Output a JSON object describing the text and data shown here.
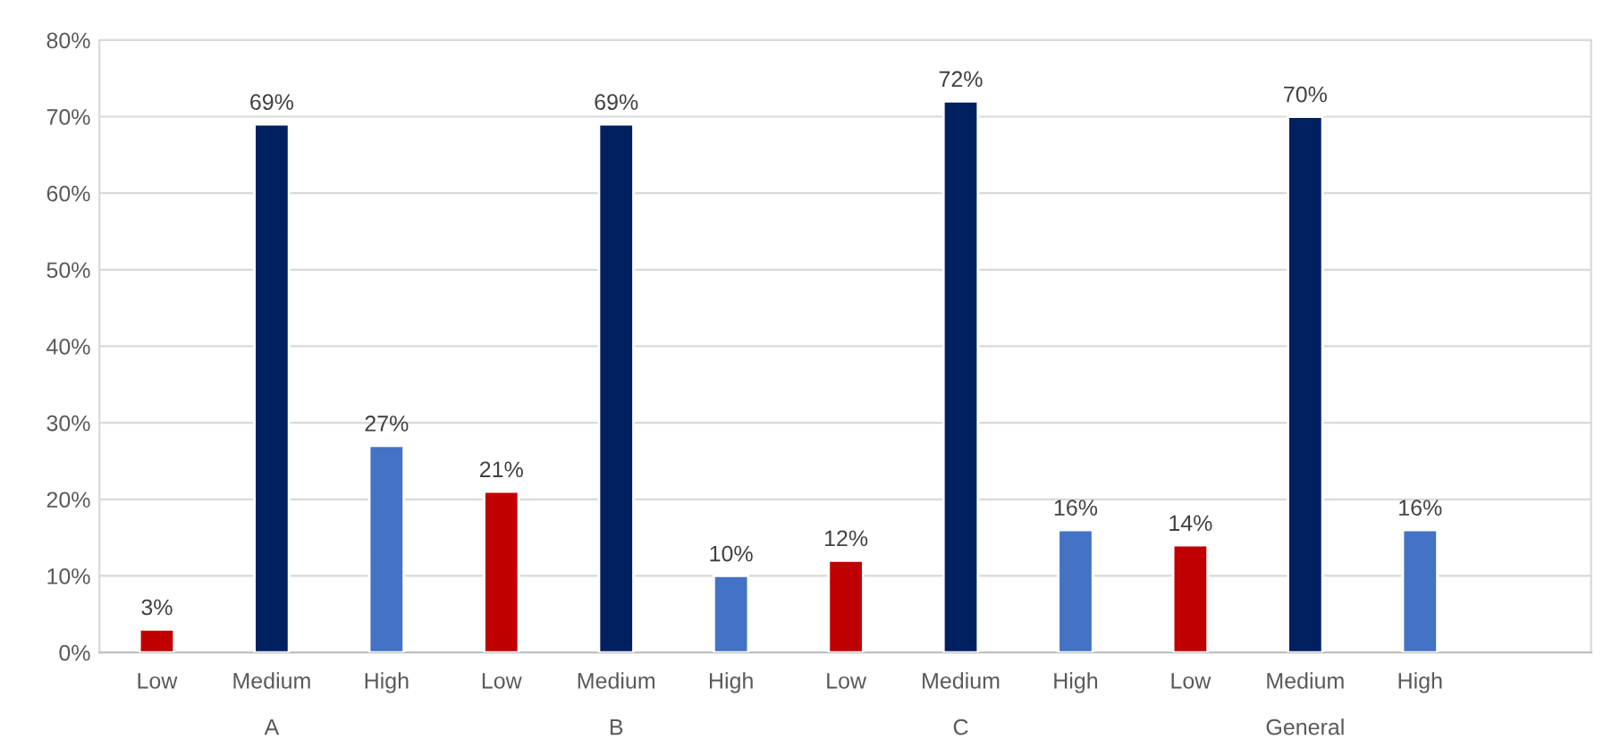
{
  "chart_data": {
    "type": "bar",
    "categories": [
      "A",
      "B",
      "C",
      "General"
    ],
    "series": [
      {
        "name": "Low",
        "color": "#c00000",
        "values": [
          3,
          21,
          12,
          14
        ],
        "value_labels": [
          "3%",
          "21%",
          "12%",
          "14%"
        ]
      },
      {
        "name": "Medium",
        "color": "#002060",
        "values": [
          69,
          69,
          72,
          70
        ],
        "value_labels": [
          "69%",
          "69%",
          "72%",
          "70%"
        ]
      },
      {
        "name": "High",
        "color": "#4472c4",
        "values": [
          27,
          10,
          16,
          16
        ],
        "value_labels": [
          "27%",
          "10%",
          "16%",
          "16%"
        ]
      }
    ],
    "ylim": [
      0,
      80
    ],
    "yticks": [
      {
        "value": 0,
        "label": "0%"
      },
      {
        "value": 10,
        "label": "10%"
      },
      {
        "value": 20,
        "label": "20%"
      },
      {
        "value": 30,
        "label": "30%"
      },
      {
        "value": 40,
        "label": "40%"
      },
      {
        "value": 50,
        "label": "50%"
      },
      {
        "value": 60,
        "label": "60%"
      },
      {
        "value": 70,
        "label": "70%"
      },
      {
        "value": 80,
        "label": "80%"
      }
    ],
    "grid": "y",
    "legend": false
  }
}
